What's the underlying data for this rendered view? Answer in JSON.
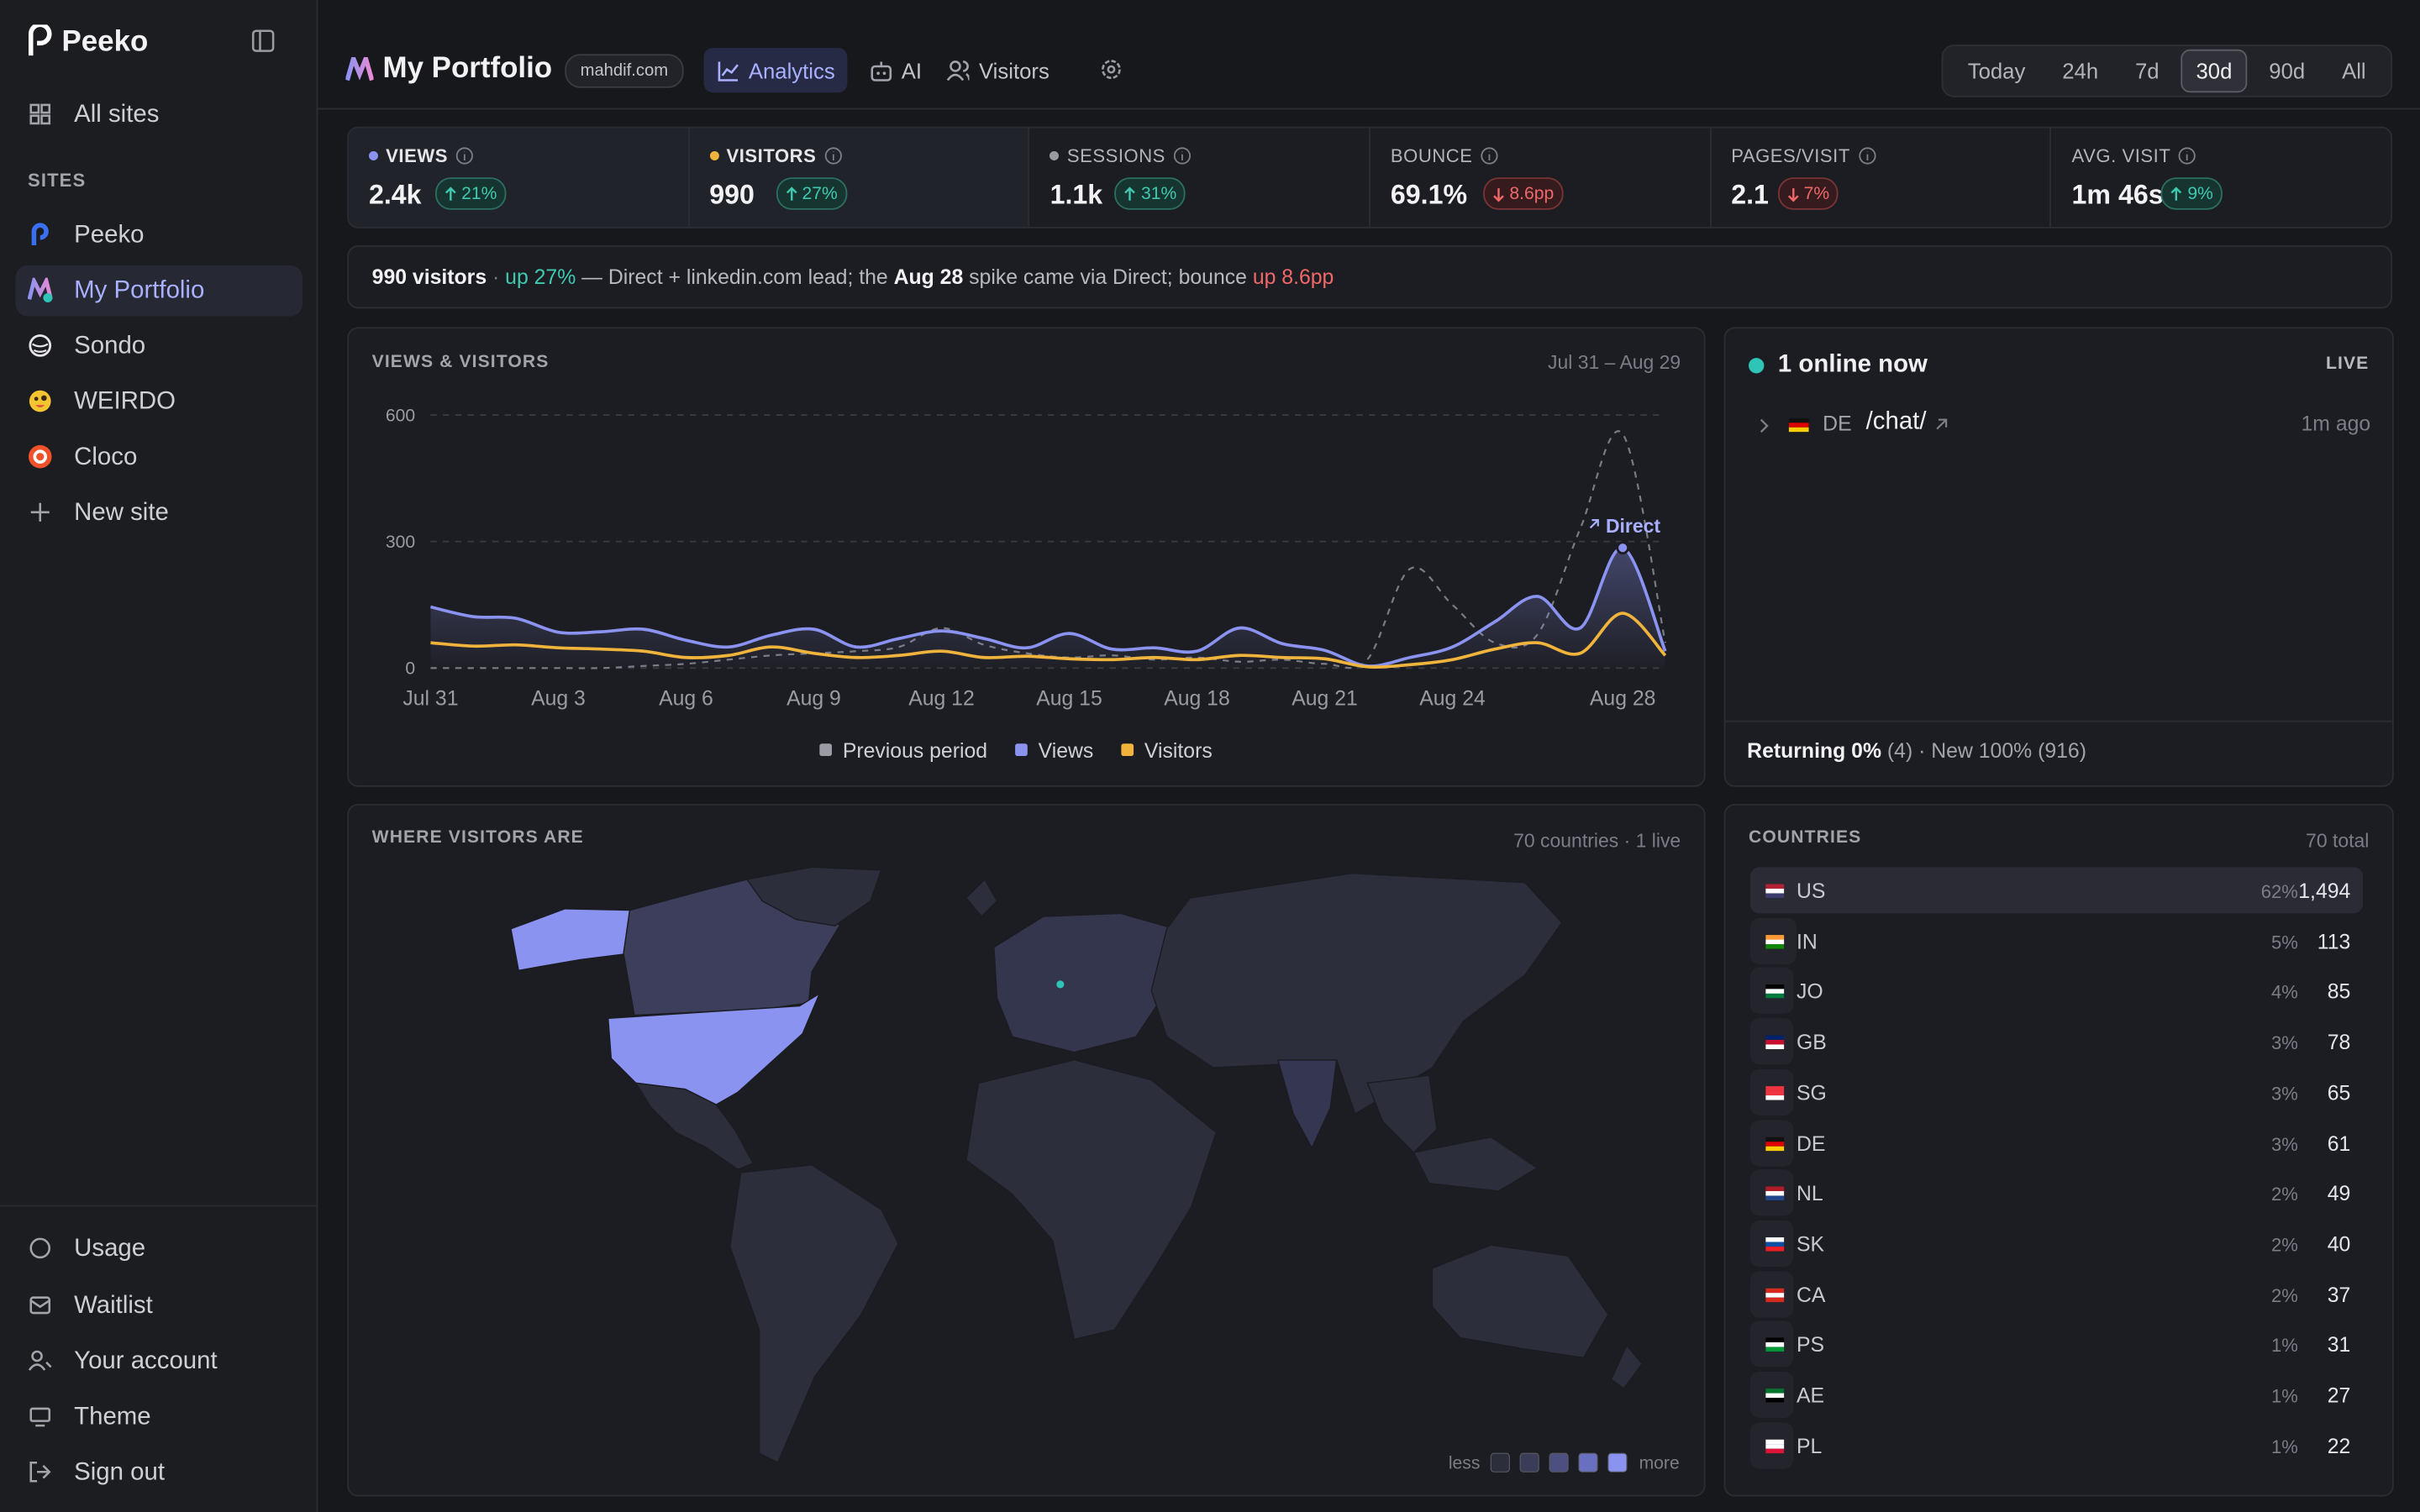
{
  "sidebar": {
    "brand": "Peeko",
    "top": [
      "All sites"
    ],
    "section": "SITES",
    "sites": [
      "Peeko",
      "My Portfolio",
      "Sondo",
      "WEIRDO",
      "Cloco"
    ],
    "new_site": "New site",
    "bottom": [
      "Usage",
      "Waitlist",
      "Your account",
      "Theme",
      "Sign out"
    ]
  },
  "header": {
    "title": "My Portfolio",
    "domain": "mahdif.com",
    "tabs": [
      "Analytics",
      "AI",
      "Visitors"
    ],
    "ranges": [
      "Today",
      "24h",
      "7d",
      "30d",
      "90d",
      "All"
    ]
  },
  "stats": [
    {
      "label": "VIEWS",
      "value": "2.4k",
      "change": "21%",
      "direction": "up",
      "color": "#8b93f0"
    },
    {
      "label": "VISITORS",
      "value": "990",
      "change": "27%",
      "direction": "up",
      "color": "#f0b43c"
    },
    {
      "label": "SESSIONS",
      "value": "1.1k",
      "change": "31%",
      "direction": "up",
      "color": "#9a9aa2"
    },
    {
      "label": "BOUNCE",
      "value": "69.1%",
      "change": "8.6pp",
      "direction": "down"
    },
    {
      "label": "PAGES/VISIT",
      "value": "2.1",
      "change": "7%",
      "direction": "down"
    },
    {
      "label": "AVG. VISIT",
      "value": "1m 46s",
      "change": "9%",
      "direction": "up"
    }
  ],
  "summary": [
    {
      "text": "990 visitors",
      "style": "strong"
    },
    {
      "text": " · ",
      "style": "muted"
    },
    {
      "text": "up 27%",
      "style": "up"
    },
    {
      "text": " — Direct + linkedin.com lead; the ",
      "style": "plain"
    },
    {
      "text": "Aug 28",
      "style": "strong"
    },
    {
      "text": " spike came via Direct; bounce ",
      "style": "plain"
    },
    {
      "text": "up 8.6pp",
      "style": "down"
    }
  ],
  "chart_data": {
    "type": "line",
    "title": "VIEWS & VISITORS",
    "subtitle": "Jul 31 – Aug 29",
    "categories": [
      "Jul 31",
      null,
      null,
      "Aug 3",
      null,
      null,
      "Aug 6",
      null,
      null,
      "Aug 9",
      null,
      null,
      "Aug 12",
      null,
      null,
      "Aug 15",
      null,
      null,
      "Aug 18",
      null,
      null,
      "Aug 21",
      null,
      null,
      "Aug 24",
      null,
      null,
      null,
      "Aug 28",
      null
    ],
    "series": [
      {
        "name": "Previous period",
        "color": "#7a7b83",
        "dashed": true,
        "values": [
          0,
          0,
          0,
          0,
          0,
          5,
          10,
          20,
          30,
          35,
          40,
          50,
          95,
          55,
          35,
          25,
          30,
          20,
          25,
          15,
          20,
          10,
          20,
          235,
          150,
          60,
          80,
          330,
          555,
          60
        ]
      },
      {
        "name": "Views",
        "color": "#8b93f0",
        "area": true,
        "values": [
          145,
          122,
          118,
          85,
          86,
          92,
          66,
          50,
          78,
          92,
          50,
          70,
          88,
          70,
          48,
          82,
          45,
          48,
          40,
          95,
          58,
          42,
          5,
          25,
          50,
          110,
          170,
          95,
          285,
          40
        ]
      },
      {
        "name": "Visitors",
        "color": "#f0b43c",
        "values": [
          60,
          52,
          55,
          48,
          45,
          40,
          25,
          30,
          50,
          35,
          25,
          30,
          40,
          25,
          28,
          22,
          20,
          25,
          20,
          30,
          25,
          22,
          3,
          8,
          20,
          45,
          60,
          35,
          130,
          30
        ]
      }
    ],
    "annotation": {
      "text": "Direct",
      "x": "Aug 28",
      "series": "Views"
    },
    "ylim": [
      0,
      600
    ],
    "yticks": [
      0,
      300,
      600
    ],
    "grid": true,
    "legend": "bottom"
  },
  "live": {
    "title": "1 online now",
    "badge": "LIVE",
    "visits": [
      {
        "country": "DE",
        "path": "/chat/",
        "time": "1m ago"
      }
    ],
    "footer": [
      {
        "text": "Returning 0%",
        "style": "strong"
      },
      {
        "text": " (4) · ",
        "style": "plain"
      },
      {
        "text": "New 100%",
        "style": "plain"
      },
      {
        "text": " (916)",
        "style": "plain"
      }
    ]
  },
  "map": {
    "title": "WHERE VISITORS ARE",
    "meta": "70 countries · 1 live",
    "legend": [
      "less",
      "more"
    ]
  },
  "countries": {
    "title": "COUNTRIES",
    "meta": "70 total",
    "codes": [
      "US",
      "IN",
      "JO",
      "GB",
      "SG",
      "DE",
      "NL",
      "SK",
      "CA",
      "PS",
      "AE",
      "PL"
    ],
    "share_labels": [
      "62%",
      "5%",
      "4%",
      "3%",
      "3%",
      "3%",
      "2%",
      "2%",
      "2%",
      "1%",
      "1%",
      "1%"
    ],
    "values": [
      1494,
      113,
      85,
      78,
      65,
      61,
      49,
      40,
      37,
      31,
      27,
      22
    ],
    "value_labels": [
      "1,494",
      "113",
      "85",
      "78",
      "65",
      "61",
      "49",
      "40",
      "37",
      "31",
      "27",
      "22"
    ]
  }
}
